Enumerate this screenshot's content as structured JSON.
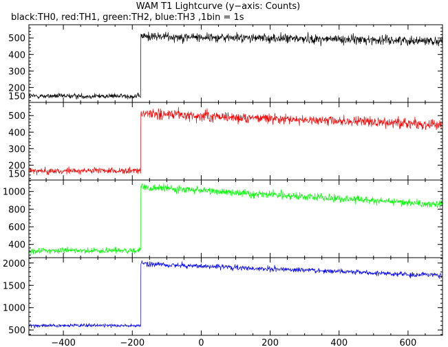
{
  "title": "WAM T1 Lightcurve (y−axis: Counts)",
  "subtitle": "black:TH0, red:TH1, green:TH2, blue:TH3 ,1bin = 1s",
  "chart_data": [
    {
      "type": "line",
      "series": [
        {
          "name": "TH0",
          "color": "#000000"
        }
      ],
      "x": {
        "start": -500,
        "end": 700,
        "step_s": 1,
        "jump_at": -175
      },
      "pre_level": 148,
      "pre_noise": 20,
      "post_start_level": 510,
      "post_end_level": 482,
      "post_noise": 36,
      "xlim": [
        -500,
        700
      ],
      "ylim": [
        110,
        580
      ],
      "yticks": [
        200,
        300,
        400,
        500
      ],
      "ytick_labels": [
        "200",
        "300",
        "400",
        "500"
      ],
      "extra_ytick_labels": [
        {
          "value": 150,
          "label": "150"
        }
      ]
    },
    {
      "type": "line",
      "series": [
        {
          "name": "TH1",
          "color": "#ff0000"
        }
      ],
      "x": {
        "start": -500,
        "end": 700,
        "step_s": 1,
        "jump_at": -175
      },
      "pre_level": 165,
      "pre_noise": 25,
      "post_start_level": 510,
      "post_end_level": 445,
      "post_noise": 40,
      "xlim": [
        -500,
        700
      ],
      "ylim": [
        110,
        580
      ],
      "yticks": [
        200,
        300,
        400,
        500
      ],
      "ytick_labels": [
        "200",
        "300",
        "400",
        "500"
      ],
      "extra_ytick_labels": [
        {
          "value": 150,
          "label": "150"
        }
      ]
    },
    {
      "type": "line",
      "series": [
        {
          "name": "TH2",
          "color": "#00ff00"
        }
      ],
      "x": {
        "start": -500,
        "end": 700,
        "step_s": 1,
        "jump_at": -175
      },
      "pre_level": 330,
      "pre_noise": 40,
      "post_start_level": 1050,
      "post_end_level": 850,
      "post_noise": 55,
      "xlim": [
        -500,
        700
      ],
      "ylim": [
        250,
        1130
      ],
      "yticks": [
        400,
        600,
        800,
        1000
      ],
      "ytick_labels": [
        "400",
        "600",
        "800",
        "1000"
      ]
    },
    {
      "type": "line",
      "series": [
        {
          "name": "TH3",
          "color": "#0000ff"
        }
      ],
      "x": {
        "start": -500,
        "end": 700,
        "step_s": 1,
        "jump_at": -175
      },
      "pre_level": 600,
      "pre_noise": 50,
      "post_start_level": 1980,
      "post_end_level": 1720,
      "post_noise": 75,
      "xlim": [
        -500,
        700
      ],
      "ylim": [
        380,
        2120
      ],
      "yticks": [
        500,
        1000,
        1500,
        2000
      ],
      "ytick_labels": [
        "500",
        "1000",
        "1500",
        "2000"
      ]
    }
  ],
  "xaxis": {
    "ticks": [
      -400,
      -200,
      0,
      200,
      400,
      600
    ],
    "tick_labels": [
      "−400",
      "−200",
      "0",
      "200",
      "400",
      "600"
    ],
    "minor_step": 50
  }
}
